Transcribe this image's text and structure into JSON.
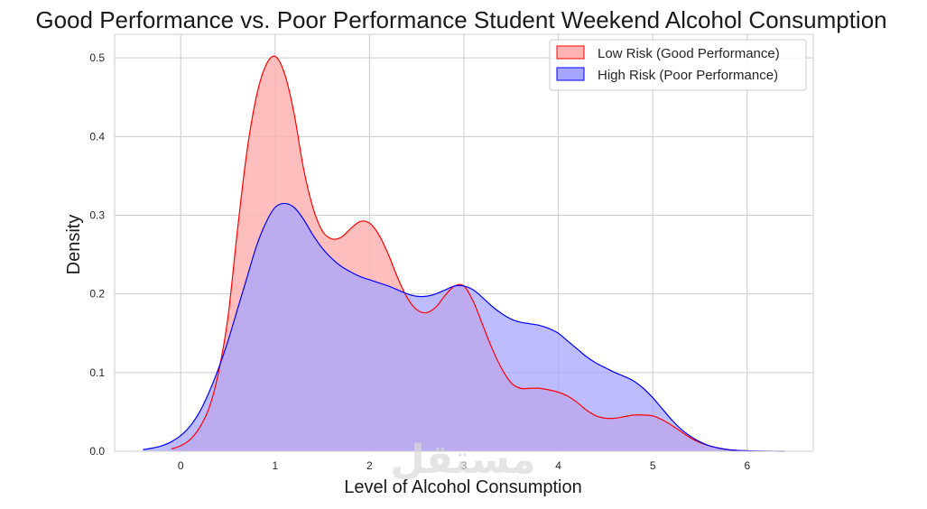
{
  "chart_data": {
    "type": "area",
    "title": "Good Performance vs. Poor Performance Student Weekend Alcohol Consumption",
    "xlabel": "Level of Alcohol Consumption",
    "ylabel": "Density",
    "xlim": [
      -0.7,
      6.7
    ],
    "ylim": [
      0,
      0.53
    ],
    "xticks": [
      "0",
      "1",
      "2",
      "3",
      "4",
      "5",
      "6"
    ],
    "yticks": [
      "0.0",
      "0.1",
      "0.2",
      "0.3",
      "0.4",
      "0.5"
    ],
    "grid": true,
    "legend_position": "top-right",
    "series": [
      {
        "name": "Low Risk (Good Performance)",
        "color": "#ff0000",
        "fill": "#ffb3b3",
        "x": [
          -0.1,
          0.0,
          0.1,
          0.2,
          0.3,
          0.4,
          0.5,
          0.6,
          0.7,
          0.8,
          0.9,
          1.0,
          1.1,
          1.2,
          1.3,
          1.4,
          1.5,
          1.6,
          1.7,
          1.8,
          1.9,
          2.0,
          2.1,
          2.2,
          2.3,
          2.4,
          2.5,
          2.6,
          2.7,
          2.8,
          2.9,
          3.0,
          3.1,
          3.2,
          3.3,
          3.4,
          3.5,
          3.6,
          3.7,
          3.8,
          3.9,
          4.0,
          4.1,
          4.2,
          4.3,
          4.4,
          4.5,
          4.6,
          4.7,
          4.8,
          4.9,
          5.0,
          5.1,
          5.2,
          5.3,
          5.4,
          5.5,
          5.6,
          5.7,
          5.8,
          5.9,
          6.0,
          6.1
        ],
        "y": [
          0.003,
          0.007,
          0.015,
          0.03,
          0.055,
          0.1,
          0.17,
          0.28,
          0.38,
          0.45,
          0.49,
          0.502,
          0.48,
          0.43,
          0.36,
          0.31,
          0.28,
          0.27,
          0.272,
          0.283,
          0.292,
          0.29,
          0.275,
          0.25,
          0.22,
          0.195,
          0.18,
          0.176,
          0.183,
          0.198,
          0.21,
          0.21,
          0.19,
          0.16,
          0.13,
          0.105,
          0.087,
          0.08,
          0.08,
          0.08,
          0.078,
          0.075,
          0.07,
          0.062,
          0.052,
          0.045,
          0.042,
          0.042,
          0.044,
          0.046,
          0.046,
          0.045,
          0.04,
          0.033,
          0.025,
          0.017,
          0.011,
          0.007,
          0.004,
          0.002,
          0.001,
          0.0005,
          0.0002
        ]
      },
      {
        "name": "High Risk (Poor Performance)",
        "color": "#0000ff",
        "fill": "#a6a6ff",
        "x": [
          -0.4,
          -0.3,
          -0.2,
          -0.1,
          0.0,
          0.1,
          0.2,
          0.3,
          0.4,
          0.5,
          0.6,
          0.7,
          0.8,
          0.9,
          1.0,
          1.1,
          1.2,
          1.3,
          1.4,
          1.5,
          1.6,
          1.7,
          1.8,
          1.9,
          2.0,
          2.1,
          2.2,
          2.3,
          2.4,
          2.5,
          2.6,
          2.7,
          2.8,
          2.9,
          3.0,
          3.1,
          3.2,
          3.3,
          3.4,
          3.5,
          3.6,
          3.7,
          3.8,
          3.9,
          4.0,
          4.1,
          4.2,
          4.3,
          4.4,
          4.5,
          4.6,
          4.7,
          4.8,
          4.9,
          5.0,
          5.1,
          5.2,
          5.3,
          5.4,
          5.5,
          5.6,
          5.7,
          5.8,
          5.9,
          6.0,
          6.1,
          6.2,
          6.3,
          6.4
        ],
        "y": [
          0.002,
          0.004,
          0.007,
          0.012,
          0.02,
          0.032,
          0.05,
          0.075,
          0.105,
          0.14,
          0.18,
          0.22,
          0.26,
          0.29,
          0.31,
          0.315,
          0.31,
          0.295,
          0.275,
          0.258,
          0.245,
          0.235,
          0.228,
          0.222,
          0.218,
          0.214,
          0.21,
          0.205,
          0.2,
          0.197,
          0.197,
          0.2,
          0.205,
          0.21,
          0.21,
          0.205,
          0.195,
          0.184,
          0.175,
          0.168,
          0.164,
          0.162,
          0.16,
          0.156,
          0.15,
          0.14,
          0.13,
          0.12,
          0.112,
          0.106,
          0.1,
          0.095,
          0.089,
          0.08,
          0.068,
          0.054,
          0.04,
          0.028,
          0.019,
          0.012,
          0.007,
          0.004,
          0.002,
          0.001,
          0.0006,
          0.0003,
          0.0001,
          5e-05,
          2e-05
        ]
      }
    ]
  },
  "watermark_text": "مستقل"
}
